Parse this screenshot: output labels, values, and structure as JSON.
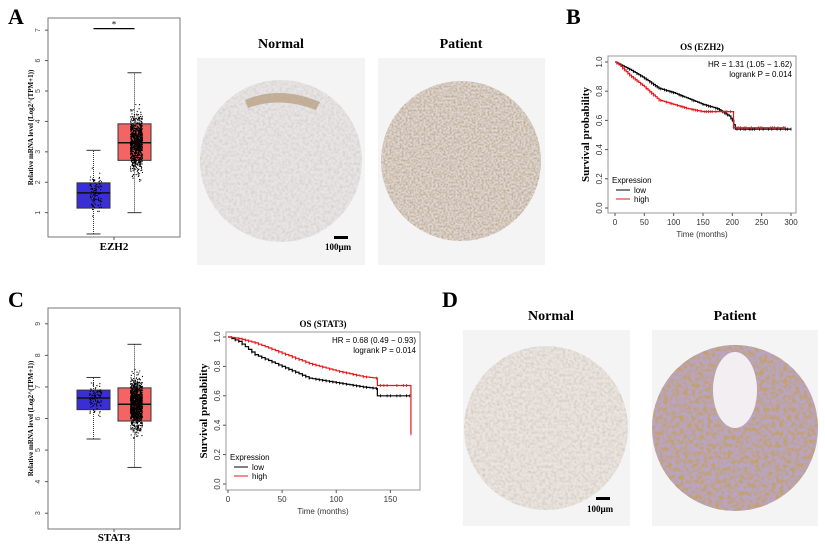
{
  "panels": {
    "A": {
      "label": "A",
      "normal_title": "Normal",
      "patient_title": "Patient",
      "scale_bar": "100µm"
    },
    "B": {
      "label": "B"
    },
    "C": {
      "label": "C"
    },
    "D": {
      "label": "D",
      "normal_title": "Normal",
      "patient_title": "Patient",
      "scale_bar": "100µm"
    }
  },
  "colors": {
    "normal_box": "#3a2fd6",
    "tumor_box": "#f46464",
    "low": "#000000",
    "high": "#e8161b"
  },
  "chart_data": [
    {
      "type": "box",
      "id": "ezh2-box",
      "ylabel": "Relative mRNA level (Log2^(TPM+1))",
      "xlabel": "EZH2",
      "ylim": [
        0.2,
        7.4
      ],
      "yticks": [
        1,
        2,
        3,
        4,
        5,
        6,
        7
      ],
      "significance": "*",
      "boxes": [
        {
          "color": "#3a2fd6",
          "whisker_low": 0.3,
          "q1": 1.15,
          "median": 1.65,
          "q3": 1.98,
          "whisker_high": 3.05
        },
        {
          "color": "#f46464",
          "whisker_low": 1.0,
          "q1": 2.72,
          "median": 3.3,
          "q3": 3.92,
          "whisker_high": 5.6
        }
      ]
    },
    {
      "type": "line",
      "id": "ezh2-km",
      "title": "OS (EZH2)",
      "xlabel": "Time (months)",
      "ylabel": "Survival probability",
      "xlim": [
        0,
        300
      ],
      "ylim": [
        0,
        1
      ],
      "xticks": [
        0,
        50,
        100,
        150,
        200,
        250,
        300
      ],
      "yticks": [
        "0.0",
        "0.2",
        "0.4",
        "0.6",
        "0.8",
        "1.0"
      ],
      "annotation": [
        "HR = 1.31 (1.05 − 1.62)",
        "logrank P = 0.014"
      ],
      "legend_title": "Expression",
      "legend_position": "bottom-left",
      "series": [
        {
          "name": "low",
          "color": "#000000",
          "x": [
            0,
            10,
            25,
            50,
            75,
            100,
            125,
            150,
            175,
            195,
            200,
            205,
            300
          ],
          "y": [
            1,
            0.98,
            0.95,
            0.89,
            0.82,
            0.79,
            0.75,
            0.71,
            0.68,
            0.63,
            0.6,
            0.54,
            0.54
          ]
        },
        {
          "name": "high",
          "color": "#e8161b",
          "x": [
            0,
            10,
            25,
            50,
            75,
            100,
            125,
            150,
            175,
            200,
            202,
            290
          ],
          "y": [
            1,
            0.97,
            0.91,
            0.83,
            0.74,
            0.71,
            0.68,
            0.66,
            0.66,
            0.66,
            0.55,
            0.55
          ]
        }
      ]
    },
    {
      "type": "box",
      "id": "stat3-box",
      "ylabel": "Relative mRNA level (Log2^(TPM+1))",
      "xlabel": "STAT3",
      "ylim": [
        2.5,
        9.5
      ],
      "yticks": [
        3,
        4,
        5,
        6,
        7,
        8,
        9
      ],
      "boxes": [
        {
          "color": "#3a2fd6",
          "whisker_low": 5.35,
          "q1": 6.28,
          "median": 6.65,
          "q3": 6.9,
          "whisker_high": 7.3
        },
        {
          "color": "#f46464",
          "whisker_low": 4.45,
          "q1": 5.92,
          "median": 6.45,
          "q3": 6.97,
          "whisker_high": 8.35
        }
      ]
    },
    {
      "type": "line",
      "id": "stat3-km",
      "title": "OS (STAT3)",
      "xlabel": "Time (months)",
      "ylabel": "Survival probability",
      "xlim": [
        0,
        170
      ],
      "ylim": [
        0,
        1
      ],
      "xticks": [
        0,
        50,
        100,
        150
      ],
      "yticks": [
        "0.0",
        "0.2",
        "0.4",
        "0.6",
        "0.8",
        "1.0"
      ],
      "annotation": [
        "HR = 0.68 (0.49 − 0.93)",
        "logrank P = 0.014"
      ],
      "legend_title": "Expression",
      "legend_position": "bottom-left",
      "series": [
        {
          "name": "low",
          "color": "#000000",
          "x": [
            0,
            10,
            25,
            50,
            75,
            100,
            125,
            137,
            138,
            168
          ],
          "y": [
            1,
            0.97,
            0.88,
            0.8,
            0.72,
            0.69,
            0.66,
            0.65,
            0.6,
            0.6
          ]
        },
        {
          "name": "high",
          "color": "#e8161b",
          "x": [
            0,
            10,
            25,
            50,
            75,
            100,
            125,
            137,
            138,
            168,
            169
          ],
          "y": [
            1,
            0.99,
            0.96,
            0.89,
            0.82,
            0.77,
            0.73,
            0.72,
            0.67,
            0.67,
            0.34
          ]
        }
      ]
    }
  ]
}
